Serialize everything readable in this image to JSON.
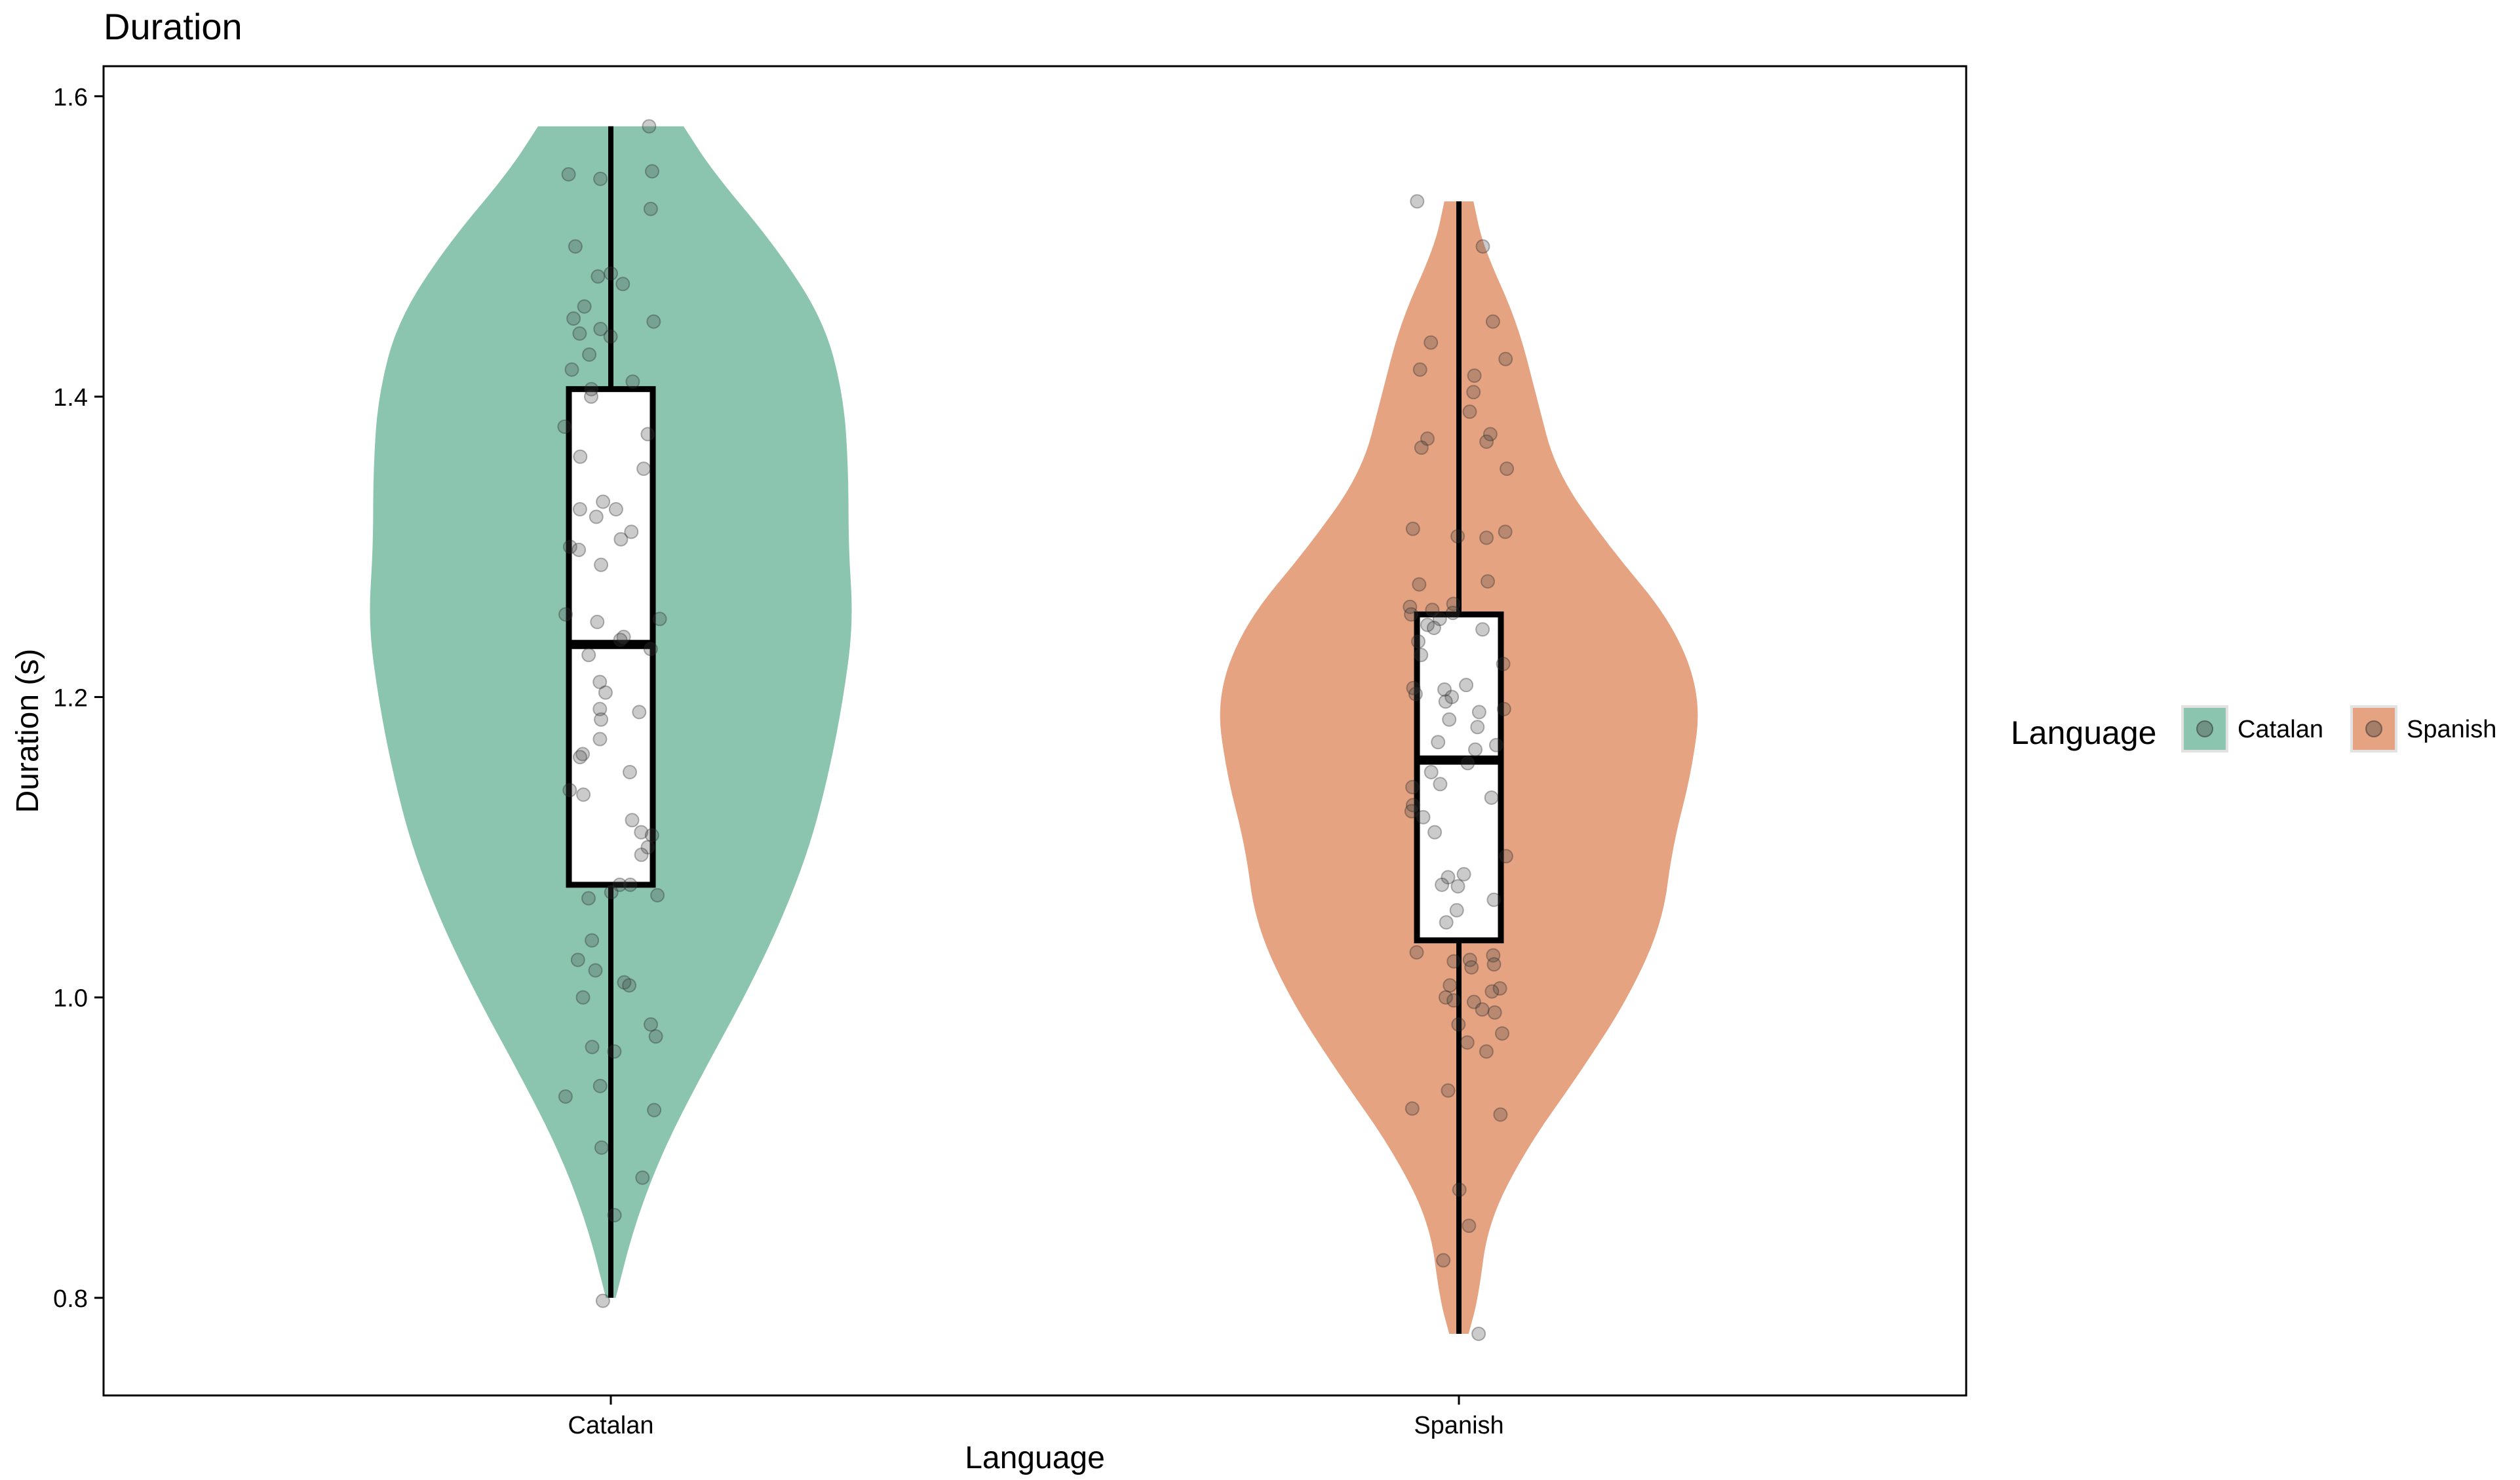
{
  "chart_data": {
    "type": "violin",
    "title": "Duration",
    "xlabel": "Language",
    "ylabel": "Duration (s)",
    "categories": [
      "Catalan",
      "Spanish"
    ],
    "ylim": [
      0.735,
      1.62
    ],
    "yticks": [
      0.8,
      1.0,
      1.2,
      1.4,
      1.6
    ],
    "grid": false,
    "legend": {
      "title": "Language",
      "position": "right",
      "entries": [
        "Catalan",
        "Spanish"
      ]
    },
    "series": [
      {
        "name": "Catalan",
        "color": "#8bc5b0",
        "min": 0.8,
        "max": 1.58,
        "q1": 1.075,
        "median": 1.235,
        "q3": 1.405,
        "density": [
          [
            0.8,
            0.02
          ],
          [
            0.85,
            0.1
          ],
          [
            0.9,
            0.22
          ],
          [
            0.95,
            0.38
          ],
          [
            1.0,
            0.55
          ],
          [
            1.05,
            0.7
          ],
          [
            1.1,
            0.82
          ],
          [
            1.15,
            0.9
          ],
          [
            1.2,
            0.96
          ],
          [
            1.25,
            1.0
          ],
          [
            1.3,
            0.98
          ],
          [
            1.35,
            0.98
          ],
          [
            1.4,
            0.96
          ],
          [
            1.45,
            0.88
          ],
          [
            1.5,
            0.68
          ],
          [
            1.55,
            0.42
          ],
          [
            1.58,
            0.3
          ]
        ],
        "points": [
          1.58,
          1.55,
          1.548,
          1.545,
          1.525,
          1.5,
          1.48,
          1.482,
          1.475,
          1.46,
          1.452,
          1.45,
          1.445,
          1.442,
          1.44,
          1.428,
          1.418,
          1.41,
          1.405,
          1.4,
          1.38,
          1.375,
          1.36,
          1.352,
          1.33,
          1.325,
          1.325,
          1.32,
          1.31,
          1.305,
          1.3,
          1.298,
          1.288,
          1.255,
          1.252,
          1.25,
          1.24,
          1.238,
          1.232,
          1.228,
          1.21,
          1.203,
          1.192,
          1.19,
          1.185,
          1.172,
          1.162,
          1.16,
          1.15,
          1.138,
          1.135,
          1.118,
          1.11,
          1.108,
          1.1,
          1.095,
          1.075,
          1.075,
          1.07,
          1.068,
          1.066,
          1.038,
          1.025,
          1.018,
          1.01,
          1.008,
          1.0,
          0.982,
          0.974,
          0.967,
          0.964,
          0.941,
          0.934,
          0.925,
          0.9,
          0.88,
          0.855,
          0.798
        ]
      },
      {
        "name": "Spanish",
        "color": "#e5a381",
        "min": 0.776,
        "max": 1.53,
        "q1": 1.038,
        "median": 1.158,
        "q3": 1.255,
        "density": [
          [
            0.776,
            0.04
          ],
          [
            0.8,
            0.08
          ],
          [
            0.85,
            0.12
          ],
          [
            0.9,
            0.28
          ],
          [
            0.95,
            0.5
          ],
          [
            1.0,
            0.7
          ],
          [
            1.05,
            0.84
          ],
          [
            1.1,
            0.88
          ],
          [
            1.15,
            0.96
          ],
          [
            1.2,
            1.0
          ],
          [
            1.25,
            0.88
          ],
          [
            1.3,
            0.62
          ],
          [
            1.35,
            0.4
          ],
          [
            1.4,
            0.32
          ],
          [
            1.45,
            0.24
          ],
          [
            1.5,
            0.1
          ],
          [
            1.53,
            0.06
          ]
        ],
        "points": [
          1.53,
          1.5,
          1.45,
          1.436,
          1.425,
          1.418,
          1.414,
          1.403,
          1.39,
          1.375,
          1.372,
          1.37,
          1.366,
          1.352,
          1.312,
          1.31,
          1.307,
          1.306,
          1.277,
          1.275,
          1.262,
          1.26,
          1.258,
          1.256,
          1.255,
          1.252,
          1.248,
          1.246,
          1.245,
          1.237,
          1.228,
          1.222,
          1.208,
          1.206,
          1.205,
          1.202,
          1.2,
          1.197,
          1.192,
          1.19,
          1.185,
          1.18,
          1.17,
          1.168,
          1.165,
          1.156,
          1.15,
          1.142,
          1.14,
          1.133,
          1.128,
          1.124,
          1.12,
          1.11,
          1.094,
          1.082,
          1.08,
          1.075,
          1.074,
          1.065,
          1.058,
          1.05,
          1.03,
          1.028,
          1.025,
          1.024,
          1.022,
          1.02,
          1.008,
          1.006,
          1.004,
          1.0,
          0.998,
          0.997,
          0.992,
          0.99,
          0.982,
          0.976,
          0.97,
          0.964,
          0.938,
          0.926,
          0.922,
          0.872,
          0.848,
          0.825,
          0.776
        ]
      }
    ]
  }
}
